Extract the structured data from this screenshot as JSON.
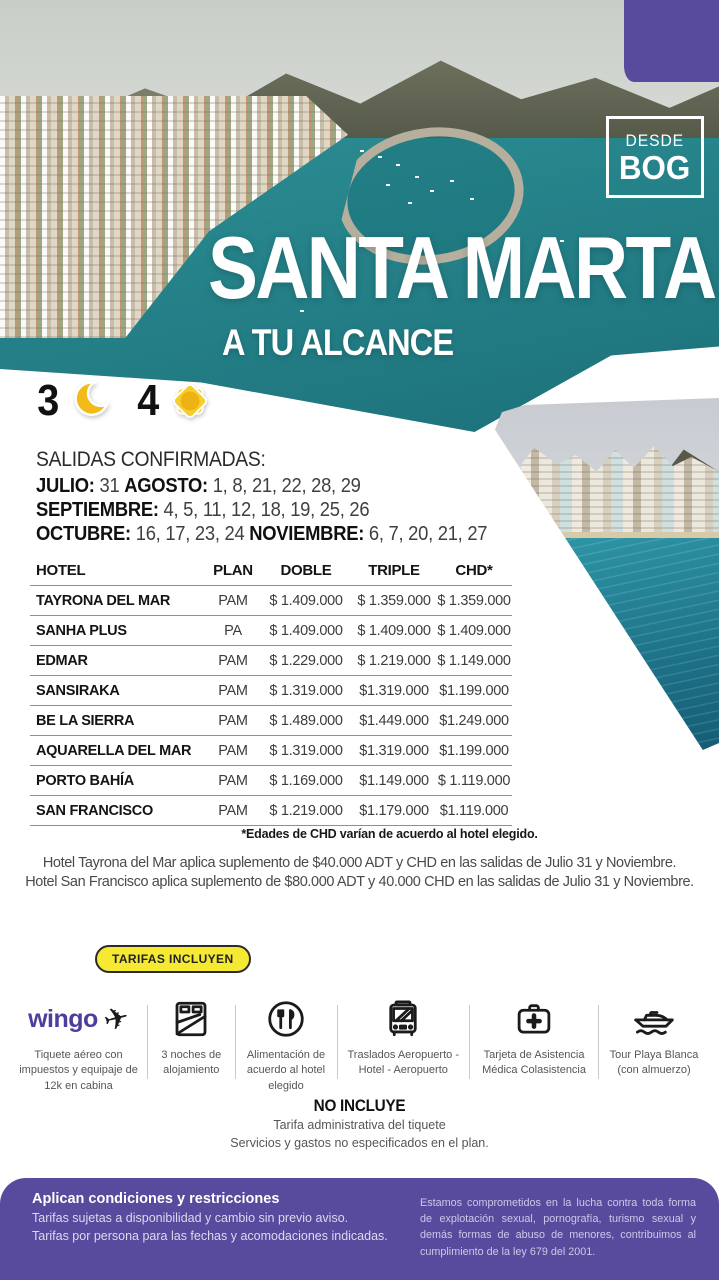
{
  "badge": {
    "line1": "DESDE",
    "line2": "BOG"
  },
  "hero": {
    "title": "SANTA MARTA",
    "subtitle": "A TU ALCANCE"
  },
  "duration": {
    "nights": "3",
    "days": "4"
  },
  "salidas": {
    "heading": "SALIDAS CONFIRMADAS:",
    "line1": {
      "m1": "JULIO:",
      "d1": " 31 ",
      "m2": "AGOSTO:",
      "d2": " 1, 8, 21, 22, 28, 29"
    },
    "line2": {
      "m1": "SEPTIEMBRE:",
      "d1": " 4, 5, 11, 12, 18, 19, 25, 26"
    },
    "line3": {
      "m1": "OCTUBRE:",
      "d1": " 16, 17, 23, 24 ",
      "m2": "NOVIEMBRE:",
      "d2": " 6, 7, 20, 21, 27"
    }
  },
  "table": {
    "headers": [
      "HOTEL",
      "PLAN",
      "DOBLE",
      "TRIPLE",
      "CHD*"
    ],
    "rows": [
      [
        "TAYRONA DEL MAR",
        "PAM",
        "$ 1.409.000",
        "$ 1.359.000",
        "$ 1.359.000"
      ],
      [
        "SANHA PLUS",
        "PA",
        "$ 1.409.000",
        "$ 1.409.000",
        "$ 1.409.000"
      ],
      [
        "EDMAR",
        "PAM",
        "$ 1.229.000",
        "$ 1.219.000",
        "$ 1.149.000"
      ],
      [
        "SANSIRAKA",
        "PAM",
        "$ 1.319.000",
        "$1.319.000",
        "$1.199.000"
      ],
      [
        "BE LA SIERRA",
        "PAM",
        "$ 1.489.000",
        "$1.449.000",
        "$1.249.000"
      ],
      [
        "AQUARELLA DEL MAR",
        "PAM",
        "$ 1.319.000",
        "$1.319.000",
        "$1.199.000"
      ],
      [
        "PORTO BAHÍA",
        "PAM",
        "$ 1.169.000",
        "$1.149.000",
        "$ 1.119.000"
      ],
      [
        "SAN FRANCISCO",
        "PAM",
        "$ 1.219.000",
        "$1.179.000",
        "$1.119.000"
      ]
    ]
  },
  "notes": {
    "chd": "*Edades de CHD varían de acuerdo al hotel elegido.",
    "line1": "Hotel Tayrona del Mar aplica suplemento de $40.000 ADT y CHD en las salidas de Julio 31 y Noviembre.",
    "line2": "Hotel San Francisco aplica suplemento de $80.000 ADT y 40.000 CHD en las salidas de Julio 31 y Noviembre."
  },
  "includes": {
    "badge": "TARIFAS INCLUYEN",
    "brand": "wingo",
    "items": [
      {
        "icon": "wingo-plane-icon",
        "label": "Tiquete aéreo con impuestos y equipaje de 12k en cabina"
      },
      {
        "icon": "bed-icon",
        "label": "3 noches de alojamiento"
      },
      {
        "icon": "meal-icon",
        "label": "Alimentación de acuerdo al hotel elegido"
      },
      {
        "icon": "bus-icon",
        "label": "Traslados Aeropuerto - Hotel - Aeropuerto"
      },
      {
        "icon": "medical-kit-icon",
        "label": "Tarjeta de Asistencia Médica Colasistencia"
      },
      {
        "icon": "boat-icon",
        "label": "Tour Playa Blanca (con almuerzo)"
      }
    ]
  },
  "excludes": {
    "title": "NO INCLUYE",
    "lines": [
      "Tarifa administrativa del tiquete",
      "Servicios y gastos no especificados en el plan."
    ]
  },
  "footer": {
    "heading": "Aplican condiciones y restricciones",
    "lines": [
      "Tarifas sujetas a disponibilidad y cambio sin previo aviso.",
      "Tarifas por persona para las fechas y acomodaciones indicadas."
    ],
    "legal": "Estamos comprometidos en la lucha contra toda forma de explotación sexual, pornografía, turismo sexual y demás formas de abuso de menores, contribuimos al cumplimiento de la ley 679 del 2001."
  },
  "colors": {
    "purple": "#584a9c",
    "yellow": "#f6e933",
    "teal": "#1f7f8c",
    "wingo_purple": "#4f3d9d",
    "sun_moon_yellow": "#f2bb17"
  }
}
